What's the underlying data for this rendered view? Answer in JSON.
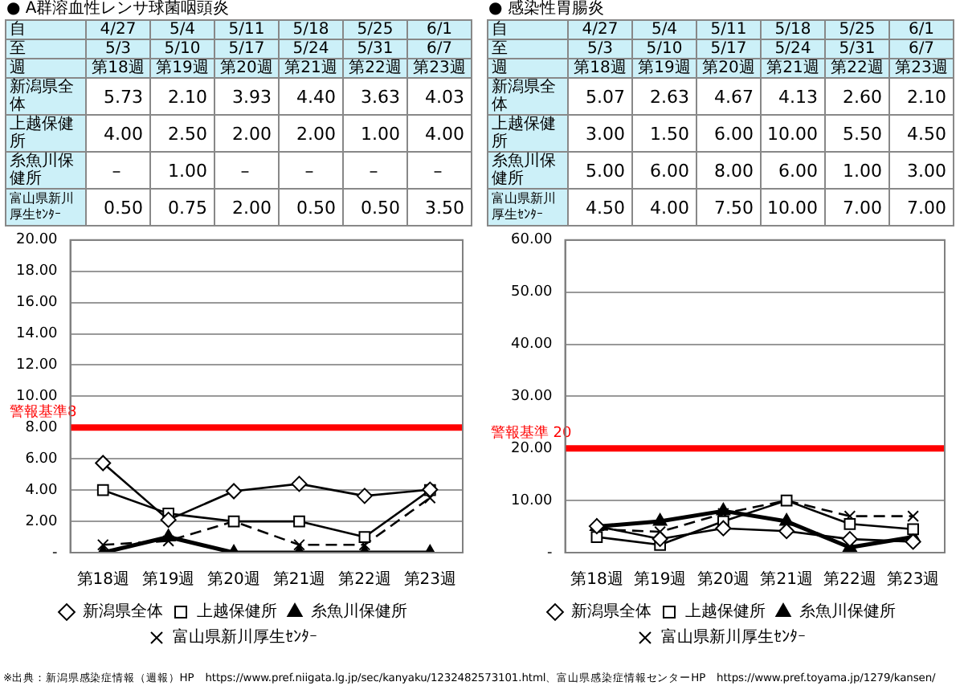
{
  "chart_data": [
    {
      "type": "line",
      "title": "● A群溶血性レンサ球菌咽頭炎",
      "categories": [
        "第18週",
        "第19週",
        "第20週",
        "第21週",
        "第22週",
        "第23週"
      ],
      "series": [
        {
          "name": "新潟県全体",
          "color": "#000000",
          "marker": "diamond",
          "line_style": "solid",
          "values": [
            5.73,
            2.1,
            3.93,
            4.4,
            3.63,
            4.03
          ],
          "value_labels": [
            "5.73",
            "2.10",
            "3.93",
            "4.40",
            "3.63",
            "4.03"
          ]
        },
        {
          "name": "上越保健所",
          "color": "#000000",
          "marker": "square",
          "line_style": "solid",
          "values": [
            4.0,
            2.5,
            2.0,
            2.0,
            1.0,
            4.0
          ],
          "value_labels": [
            "4.00",
            "2.50",
            "2.00",
            "2.00",
            "1.00",
            "4.00"
          ]
        },
        {
          "name": "糸魚川保健所",
          "color": "#000000",
          "marker": "triangle",
          "line_style": "solid",
          "values": [
            0,
            1.0,
            0,
            0,
            0,
            0
          ],
          "value_labels": [
            "–",
            "1.00",
            "–",
            "–",
            "–",
            "–"
          ]
        },
        {
          "name": "富山県新川厚生ｾﾝﾀｰ",
          "color": "#000000",
          "marker": "cross",
          "line_style": "dashed",
          "values": [
            0.5,
            0.75,
            2.0,
            0.5,
            0.5,
            3.5
          ],
          "value_labels": [
            "0.50",
            "0.75",
            "2.00",
            "0.50",
            "0.50",
            "3.50"
          ]
        }
      ],
      "ylim": [
        0,
        20
      ],
      "yticks": [
        {
          "value": 0,
          "label": "-"
        },
        {
          "value": 2,
          "label": "2.00"
        },
        {
          "value": 4,
          "label": "4.00"
        },
        {
          "value": 6,
          "label": "6.00"
        },
        {
          "value": 8,
          "label": "8.00"
        },
        {
          "value": 10,
          "label": "10.00"
        },
        {
          "value": 12,
          "label": "12.00"
        },
        {
          "value": 14,
          "label": "14.00"
        },
        {
          "value": 16,
          "label": "16.00"
        },
        {
          "value": 18,
          "label": "18.00"
        },
        {
          "value": 20,
          "label": "20.00"
        }
      ],
      "ref_lines": [
        {
          "axis": "y",
          "value": 8,
          "label": "警報基準8",
          "color": "#ff0000"
        }
      ],
      "annotations": [
        "自",
        "4/27",
        "5/4",
        "5/11",
        "5/18",
        "5/25",
        "6/1",
        "至",
        "5/3",
        "5/10",
        "5/17",
        "5/24",
        "5/31",
        "6/7",
        "週"
      ],
      "grid": "y",
      "legend": "bottom"
    },
    {
      "type": "line",
      "title": "● 感染性胃腸炎",
      "categories": [
        "第18週",
        "第19週",
        "第20週",
        "第21週",
        "第22週",
        "第23週"
      ],
      "series": [
        {
          "name": "新潟県全体",
          "color": "#000000",
          "marker": "diamond",
          "line_style": "solid",
          "values": [
            5.07,
            2.63,
            4.67,
            4.13,
            2.6,
            2.1
          ],
          "value_labels": [
            "5.07",
            "2.63",
            "4.67",
            "4.13",
            "2.60",
            "2.10"
          ]
        },
        {
          "name": "上越保健所",
          "color": "#000000",
          "marker": "square",
          "line_style": "solid",
          "values": [
            3.0,
            1.5,
            6.0,
            10.0,
            5.5,
            4.5
          ],
          "value_labels": [
            "3.00",
            "1.50",
            "6.00",
            "10.00",
            "5.50",
            "4.50"
          ]
        },
        {
          "name": "糸魚川保健所",
          "color": "#000000",
          "marker": "triangle",
          "line_style": "solid",
          "values": [
            5.0,
            6.0,
            8.0,
            6.0,
            1.0,
            3.0
          ],
          "value_labels": [
            "5.00",
            "6.00",
            "8.00",
            "6.00",
            "1.00",
            "3.00"
          ]
        },
        {
          "name": "富山県新川厚生ｾﾝﾀｰ",
          "color": "#000000",
          "marker": "cross",
          "line_style": "dashed",
          "values": [
            4.5,
            4.0,
            7.5,
            10.0,
            7.0,
            7.0
          ],
          "value_labels": [
            "4.50",
            "4.00",
            "7.50",
            "10.00",
            "7.00",
            "7.00"
          ]
        }
      ],
      "ylim": [
        0,
        60
      ],
      "yticks": [
        {
          "value": 0,
          "label": "-"
        },
        {
          "value": 10,
          "label": "10.00"
        },
        {
          "value": 20,
          "label": "20.00"
        },
        {
          "value": 30,
          "label": "30.00"
        },
        {
          "value": 40,
          "label": "40.00"
        },
        {
          "value": 50,
          "label": "50.00"
        },
        {
          "value": 60,
          "label": "60.00"
        }
      ],
      "ref_lines": [
        {
          "axis": "y",
          "value": 20,
          "label": "警報基準 20",
          "color": "#ff0000"
        }
      ],
      "annotations": [
        "自",
        "4/27",
        "5/4",
        "5/11",
        "5/18",
        "5/25",
        "6/1",
        "至",
        "5/3",
        "5/10",
        "5/17",
        "5/24",
        "5/31",
        "6/7",
        "週",
        "※出典：新潟県感染症情報（週報）HP　https://www.pref.niigata.lg.jp/sec/kanyaku/1232482573101.html、富山県感染症情報センターHP　https://www.pref.toyama.jp/1279/kansen/"
      ],
      "grid": "y",
      "legend": "bottom"
    }
  ]
}
